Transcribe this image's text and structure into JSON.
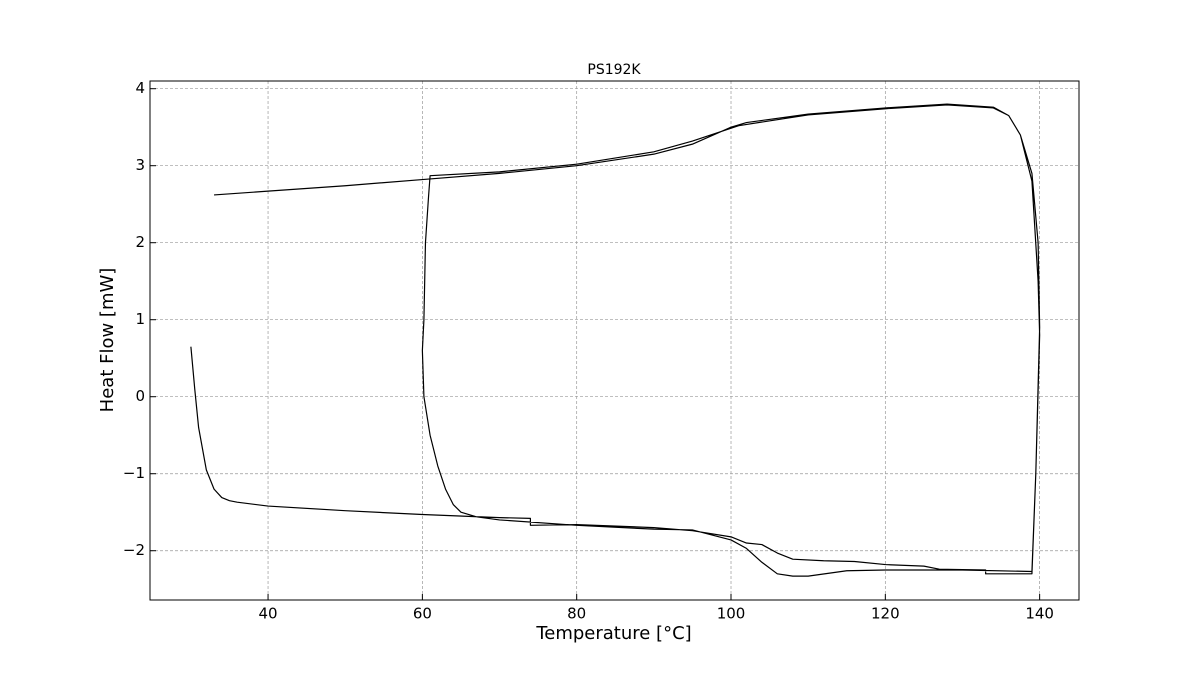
{
  "chart_data": {
    "type": "line",
    "title": "PS192K",
    "x_label": "Temperature  [°C]",
    "y_label": "Heat Flow [mW]",
    "x": [
      30,
      30.5,
      31,
      32,
      33,
      34,
      35,
      36,
      40,
      50,
      60,
      70,
      74,
      74,
      80,
      90,
      95,
      100,
      102,
      104,
      106,
      108,
      112,
      116,
      120,
      125,
      127,
      133,
      133,
      139,
      139.5,
      140,
      139.8,
      139,
      137.5,
      136,
      134,
      128,
      120,
      110,
      101,
      95,
      90,
      80,
      70,
      61,
      60.8,
      60.4,
      60.2,
      60,
      60.2,
      61,
      62,
      63,
      64,
      65,
      67,
      70,
      80,
      90,
      95,
      100,
      102,
      104,
      106,
      108,
      110,
      115,
      120,
      130,
      139,
      139.5,
      140,
      139.8,
      139,
      137.5,
      136,
      134,
      128,
      120,
      110,
      102,
      100,
      95,
      90,
      80,
      70,
      60,
      50,
      40,
      33
    ],
    "values": [
      0.65,
      0.1,
      -0.4,
      -0.95,
      -1.2,
      -1.31,
      -1.35,
      -1.37,
      -1.42,
      -1.48,
      -1.53,
      -1.57,
      -1.58,
      -1.67,
      -1.66,
      -1.7,
      -1.74,
      -1.82,
      -1.9,
      -1.92,
      -2.03,
      -2.11,
      -2.13,
      -2.14,
      -2.18,
      -2.2,
      -2.24,
      -2.25,
      -2.3,
      -2.3,
      -1.0,
      0.8,
      1.5,
      2.8,
      3.4,
      3.65,
      3.75,
      3.79,
      3.74,
      3.66,
      3.52,
      3.32,
      3.18,
      3.02,
      2.92,
      2.87,
      2.6,
      2.0,
      1.0,
      0.6,
      0.0,
      -0.5,
      -0.9,
      -1.2,
      -1.4,
      -1.5,
      -1.56,
      -1.6,
      -1.67,
      -1.72,
      -1.73,
      -1.86,
      -1.97,
      -2.15,
      -2.3,
      -2.33,
      -2.33,
      -2.26,
      -2.25,
      -2.25,
      -2.27,
      -1.0,
      0.9,
      2.0,
      2.9,
      3.4,
      3.65,
      3.76,
      3.8,
      3.75,
      3.67,
      3.56,
      3.5,
      3.28,
      3.15,
      3.0,
      2.9,
      2.82,
      2.74,
      2.67,
      2.62
    ],
    "color": "#000000",
    "xlim": [
      24.7,
      145.1
    ],
    "xticks": [
      40,
      60,
      80,
      100,
      120,
      140
    ],
    "ylim": [
      -2.64,
      4.1
    ],
    "yticks": [
      {
        "value": -2,
        "label": "−2"
      },
      {
        "value": -1,
        "label": "−1"
      },
      0,
      1,
      2,
      3,
      4
    ],
    "grid": true
  }
}
